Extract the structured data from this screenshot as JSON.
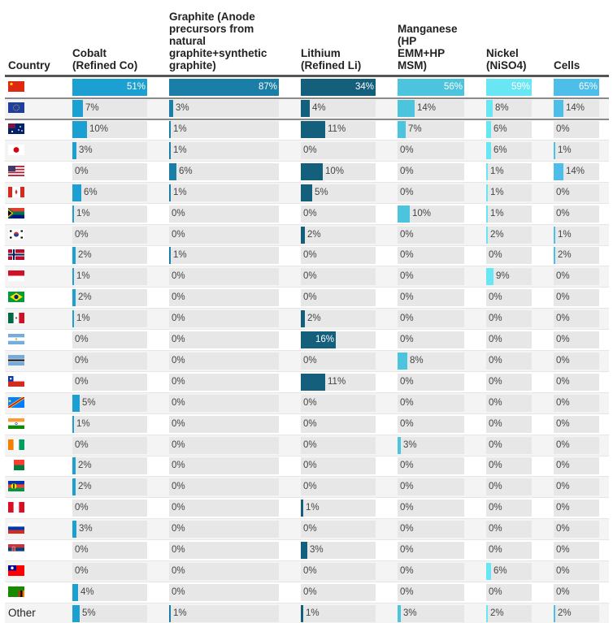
{
  "chart_data": {
    "type": "table",
    "title": "",
    "country_header": "Country",
    "columns": [
      {
        "key": "cobalt",
        "label": "Cobalt (Refined Co)",
        "label_lines": [
          "Cobalt",
          "(Refined Co)"
        ],
        "color": "#1c9fd1"
      },
      {
        "key": "graphite",
        "label": "Graphite (Anode precursors from natural graphite+synthetic graphite)",
        "label_lines": [
          "Graphite (Anode",
          "precursors from",
          "natural",
          "graphite+synthetic",
          "graphite)"
        ],
        "color": "#1b7ea6"
      },
      {
        "key": "lithium",
        "label": "Lithium (Refined Li)",
        "label_lines": [
          "Lithium",
          "(Refined Li)"
        ],
        "color": "#135f7c"
      },
      {
        "key": "manganese",
        "label": "Manganese (HP EMM+HP MSM)",
        "label_lines": [
          "Manganese",
          "(HP",
          "EMM+HP",
          "MSM)"
        ],
        "color": "#4cc4de"
      },
      {
        "key": "nickel",
        "label": "Nickel (NiSO4)",
        "label_lines": [
          "Nickel",
          "(NiSO4)"
        ],
        "color": "#69e6f4"
      },
      {
        "key": "cells",
        "label": "Cells",
        "label_lines": [
          "Cells"
        ],
        "color": "#4dbdea"
      }
    ],
    "unit": "%",
    "rows": [
      {
        "country": "China",
        "flag": "china-flag",
        "values": [
          51,
          87,
          34,
          56,
          59,
          65
        ]
      },
      {
        "country": "European Union",
        "flag": "eu-flag",
        "values": [
          7,
          3,
          4,
          14,
          8,
          14
        ]
      },
      {
        "country": "Australia",
        "flag": "australia-flag",
        "values": [
          10,
          1,
          11,
          7,
          6,
          0
        ]
      },
      {
        "country": "Japan",
        "flag": "japan-flag",
        "values": [
          3,
          1,
          0,
          0,
          6,
          1
        ]
      },
      {
        "country": "United States",
        "flag": "usa-flag",
        "values": [
          0,
          6,
          10,
          0,
          1,
          14
        ]
      },
      {
        "country": "Canada",
        "flag": "canada-flag",
        "values": [
          6,
          1,
          5,
          0,
          1,
          0
        ]
      },
      {
        "country": "South Africa",
        "flag": "south-africa-flag",
        "values": [
          1,
          0,
          0,
          10,
          1,
          0
        ]
      },
      {
        "country": "South Korea",
        "flag": "south-korea-flag",
        "values": [
          0,
          0,
          2,
          0,
          2,
          1
        ]
      },
      {
        "country": "Norway",
        "flag": "norway-flag",
        "values": [
          2,
          1,
          0,
          0,
          0,
          2
        ]
      },
      {
        "country": "Indonesia",
        "flag": "indonesia-flag",
        "values": [
          1,
          0,
          0,
          0,
          9,
          0
        ]
      },
      {
        "country": "Brazil",
        "flag": "brazil-flag",
        "values": [
          2,
          0,
          0,
          0,
          0,
          0
        ]
      },
      {
        "country": "Mexico",
        "flag": "mexico-flag",
        "values": [
          1,
          0,
          2,
          0,
          0,
          0
        ]
      },
      {
        "country": "Argentina",
        "flag": "argentina-flag",
        "values": [
          0,
          0,
          16,
          0,
          0,
          0
        ]
      },
      {
        "country": "Botswana",
        "flag": "botswana-flag",
        "values": [
          0,
          0,
          0,
          8,
          0,
          0
        ]
      },
      {
        "country": "Chile",
        "flag": "chile-flag",
        "values": [
          0,
          0,
          11,
          0,
          0,
          0
        ]
      },
      {
        "country": "DR Congo",
        "flag": "dr-congo-flag",
        "values": [
          5,
          0,
          0,
          0,
          0,
          0
        ]
      },
      {
        "country": "India",
        "flag": "india-flag",
        "values": [
          1,
          0,
          0,
          0,
          0,
          0
        ]
      },
      {
        "country": "Ivory Coast",
        "flag": "ivory-coast-flag",
        "values": [
          0,
          0,
          0,
          3,
          0,
          0
        ]
      },
      {
        "country": "Madagascar",
        "flag": "madagascar-flag",
        "values": [
          2,
          0,
          0,
          0,
          0,
          0
        ]
      },
      {
        "country": "New Caledonia",
        "flag": "new-caledonia-flag",
        "values": [
          2,
          0,
          0,
          0,
          0,
          0
        ]
      },
      {
        "country": "Peru",
        "flag": "peru-flag",
        "values": [
          0,
          0,
          1,
          0,
          0,
          0
        ]
      },
      {
        "country": "Russia",
        "flag": "russia-flag",
        "values": [
          3,
          0,
          0,
          0,
          0,
          0
        ]
      },
      {
        "country": "Serbia",
        "flag": "serbia-flag",
        "values": [
          0,
          0,
          3,
          0,
          0,
          0
        ]
      },
      {
        "country": "Taiwan",
        "flag": "taiwan-flag",
        "values": [
          0,
          0,
          0,
          0,
          6,
          0
        ]
      },
      {
        "country": "Zambia",
        "flag": "zambia-flag",
        "values": [
          4,
          0,
          0,
          0,
          0,
          0
        ]
      },
      {
        "country": "Other",
        "flag": null,
        "label": "Other",
        "values": [
          5,
          1,
          1,
          3,
          2,
          2
        ]
      }
    ],
    "bar_scaling": "per-column, relative to column maximum",
    "grid": false
  }
}
